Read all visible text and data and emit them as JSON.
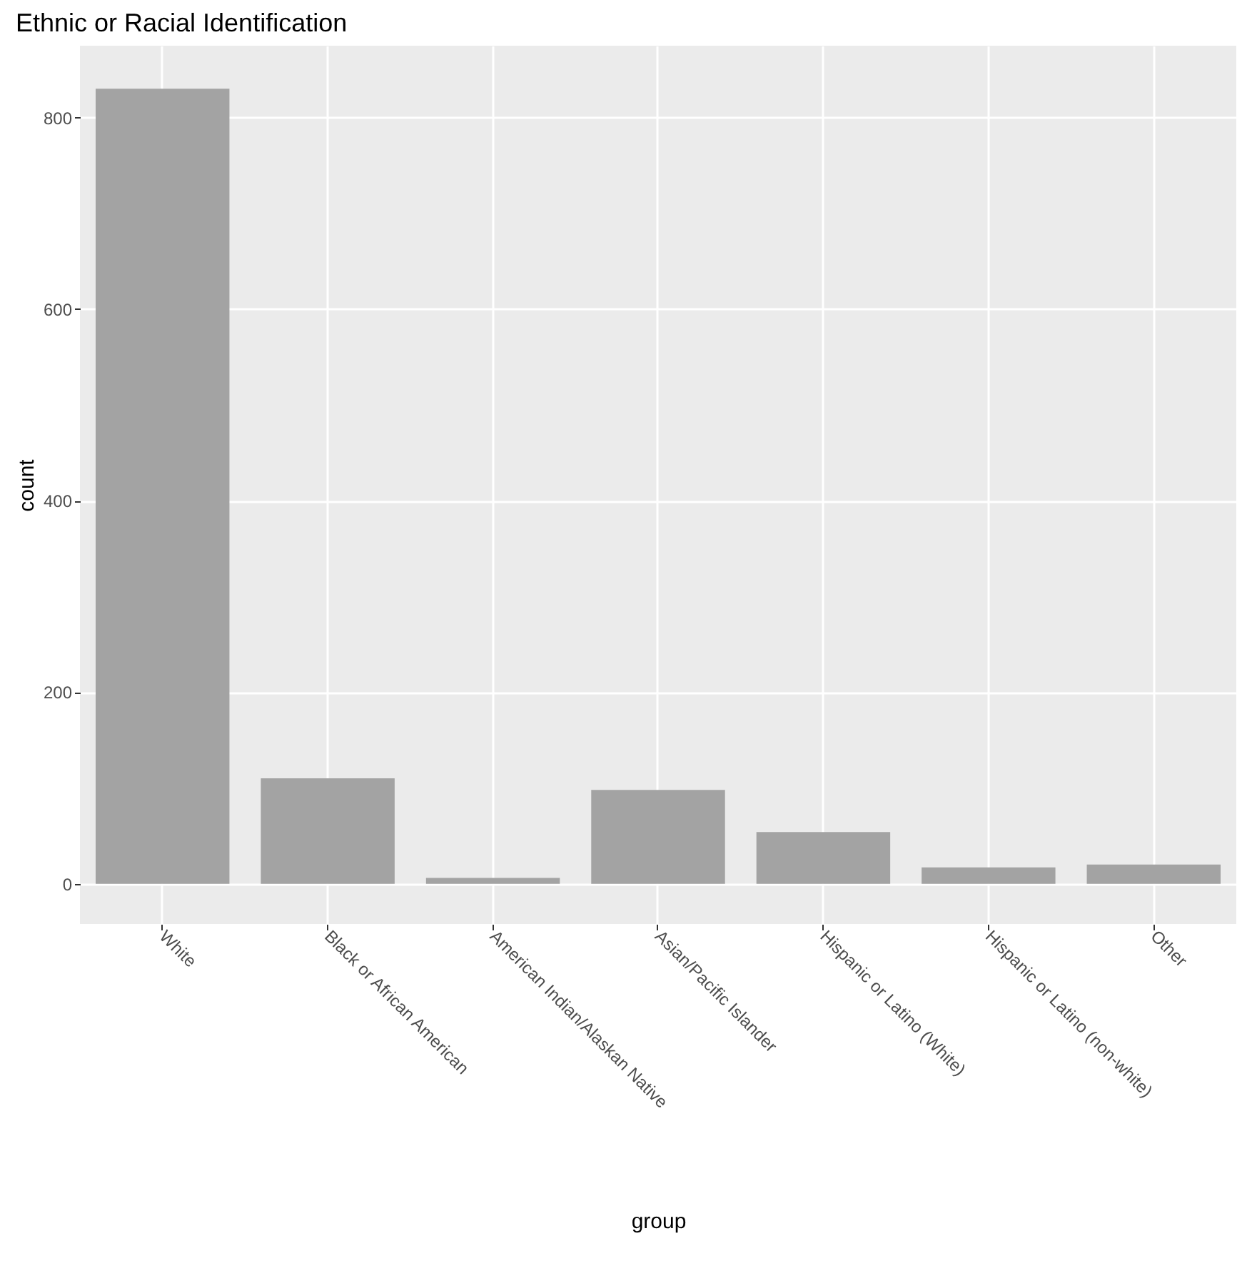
{
  "chart_data": {
    "type": "bar",
    "title": "Ethnic or Racial Identification",
    "xlabel": "group",
    "ylabel": "count",
    "categories": [
      "White",
      "Black or African American",
      "American Indian/Alaskan Native",
      "Asian/Pacific Islander",
      "Hispanic or Latino (White)",
      "Hispanic or Latino (non-white)",
      "Other"
    ],
    "values": [
      830,
      110,
      6,
      98,
      54,
      17,
      20
    ],
    "color": "#a3a3a3",
    "ylim": [
      -42,
      875
    ],
    "yticks": [
      0,
      200,
      400,
      600,
      800
    ],
    "grid": true
  }
}
